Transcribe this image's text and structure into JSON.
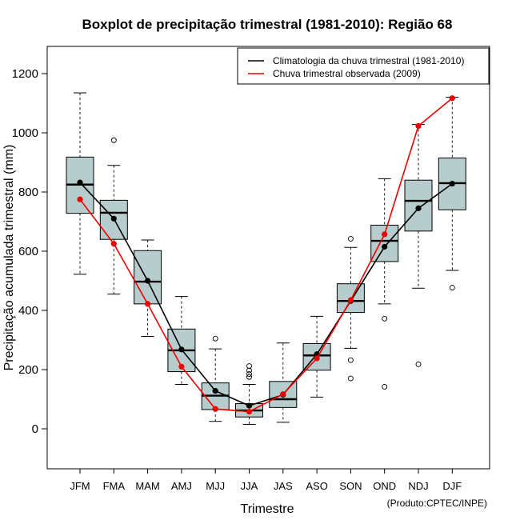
{
  "chart_data": {
    "type": "boxplot",
    "title": "Boxplot de precipitação trimestral (1981-2010): Região 68",
    "xlabel": "Trimestre",
    "ylabel": "Precipitação acumulada trimestral (mm)",
    "credit": "(Produto:CPTEC/INPE)",
    "ylim": [
      -135,
      1290
    ],
    "yticks": [
      0,
      200,
      400,
      600,
      800,
      1000,
      1200
    ],
    "categories": [
      "JFM",
      "FMA",
      "MAM",
      "AMJ",
      "MJJ",
      "JJA",
      "JAS",
      "ASO",
      "SON",
      "OND",
      "NDJ",
      "DJF"
    ],
    "boxes": [
      {
        "whisker_low": 522,
        "q1": 728,
        "median": 825,
        "q3": 918,
        "whisker_high": 1135,
        "outliers": []
      },
      {
        "whisker_low": 455,
        "q1": 640,
        "median": 730,
        "q3": 772,
        "whisker_high": 890,
        "outliers": [
          975
        ]
      },
      {
        "whisker_low": 312,
        "q1": 422,
        "median": 497,
        "q3": 602,
        "whisker_high": 638,
        "outliers": []
      },
      {
        "whisker_low": 150,
        "q1": 193,
        "median": 265,
        "q3": 337,
        "whisker_high": 447,
        "outliers": []
      },
      {
        "whisker_low": 25,
        "q1": 65,
        "median": 112,
        "q3": 155,
        "whisker_high": 270,
        "outliers": [
          305
        ]
      },
      {
        "whisker_low": 15,
        "q1": 40,
        "median": 62,
        "q3": 85,
        "whisker_high": 150,
        "outliers": [
          175,
          185,
          197,
          212
        ]
      },
      {
        "whisker_low": 22,
        "q1": 72,
        "median": 100,
        "q3": 160,
        "whisker_high": 290,
        "outliers": []
      },
      {
        "whisker_low": 107,
        "q1": 198,
        "median": 248,
        "q3": 288,
        "whisker_high": 380,
        "outliers": []
      },
      {
        "whisker_low": 272,
        "q1": 393,
        "median": 432,
        "q3": 490,
        "whisker_high": 613,
        "outliers": [
          642,
          232,
          170
        ]
      },
      {
        "whisker_low": 422,
        "q1": 565,
        "median": 635,
        "q3": 688,
        "whisker_high": 845,
        "outliers": [
          372,
          142
        ]
      },
      {
        "whisker_low": 475,
        "q1": 668,
        "median": 770,
        "q3": 840,
        "whisker_high": 1028,
        "outliers": [
          218
        ]
      },
      {
        "whisker_low": 535,
        "q1": 740,
        "median": 830,
        "q3": 915,
        "whisker_high": 1120,
        "outliers": [
          477
        ]
      }
    ],
    "series": [
      {
        "name": "Climatologia da chuva trimestral (1981-2010)",
        "color": "#000000",
        "values": [
          832,
          710,
          500,
          268,
          128,
          78,
          115,
          252,
          432,
          615,
          745,
          828
        ]
      },
      {
        "name": "Chuva trimestral observada (2009)",
        "color": "#ee0000",
        "values": [
          775,
          625,
          422,
          210,
          67,
          58,
          117,
          238,
          435,
          657,
          1023,
          1117
        ]
      }
    ],
    "box_fill": "#b7cccc",
    "legend_position": "top-right"
  }
}
